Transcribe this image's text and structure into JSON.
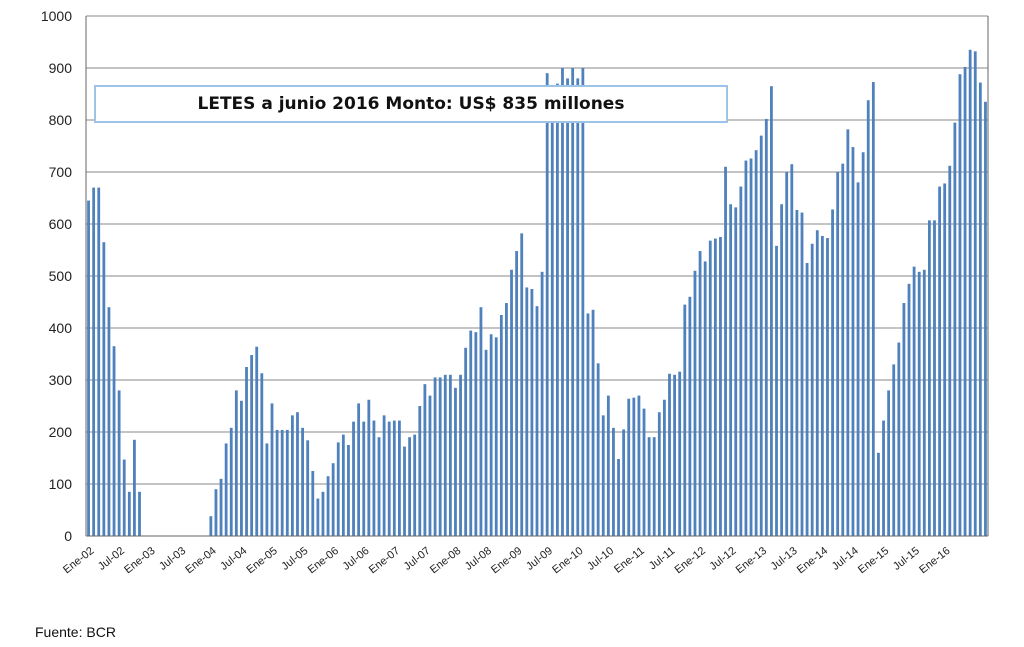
{
  "chart_data": {
    "type": "bar",
    "title": "",
    "annotation": "LETES a junio 2016 Monto: US$ 835 millones",
    "xlabel": "",
    "ylabel": "",
    "ylim": [
      0,
      1000
    ],
    "yticks": [
      0,
      100,
      200,
      300,
      400,
      500,
      600,
      700,
      800,
      900,
      1000
    ],
    "grid": true,
    "x_tick_labels": [
      "Ene-02",
      "Jul-02",
      "Ene-03",
      "Jul-03",
      "Ene-04",
      "Jul-04",
      "Ene-05",
      "Jul-05",
      "Ene-06",
      "Jul-06",
      "Ene-07",
      "Jul-07",
      "Ene-08",
      "Jul-08",
      "Ene-09",
      "Jul-09",
      "Ene-10",
      "Jul-10",
      "Ene-11",
      "Jul-11",
      "Ene-12",
      "Jul-12",
      "Ene-13",
      "Jul-13",
      "Ene-14",
      "Jul-14",
      "Ene-15",
      "Jul-15",
      "Ene-16"
    ],
    "period_start": "Ene-02",
    "period_end": "Jun-16",
    "series": [
      {
        "name": "LETES (US$ millones)",
        "color": "#4f81bd",
        "values": [
          645,
          670,
          670,
          565,
          440,
          365,
          280,
          147,
          85,
          185,
          85,
          0,
          0,
          0,
          0,
          0,
          0,
          0,
          0,
          0,
          0,
          0,
          0,
          0,
          38,
          90,
          110,
          178,
          208,
          280,
          260,
          325,
          348,
          364,
          313,
          178,
          255,
          204,
          204,
          204,
          232,
          238,
          208,
          184,
          125,
          72,
          85,
          115,
          140,
          180,
          195,
          175,
          220,
          255,
          220,
          262,
          222,
          190,
          232,
          220,
          222,
          222,
          172,
          190,
          195,
          250,
          292,
          270,
          305,
          305,
          310,
          310,
          285,
          310,
          362,
          395,
          392,
          440,
          358,
          388,
          382,
          425,
          448,
          512,
          548,
          582,
          478,
          475,
          442,
          508,
          890,
          860,
          870,
          900,
          880,
          900,
          880,
          900,
          428,
          435,
          332,
          232,
          270,
          208,
          148,
          205,
          264,
          266,
          270,
          245,
          190,
          190,
          238,
          262,
          312,
          310,
          316,
          445,
          460,
          510,
          548,
          528,
          568,
          572,
          575,
          710,
          638,
          632,
          672,
          722,
          726,
          742,
          770,
          802,
          865,
          558,
          638,
          700,
          715,
          627,
          622,
          525,
          562,
          588,
          577,
          573,
          628,
          700,
          716,
          782,
          748,
          680,
          738,
          838,
          873,
          160,
          222,
          280,
          330,
          372,
          448,
          485,
          518,
          508,
          512,
          607,
          607,
          672,
          678,
          712,
          795,
          888,
          902,
          935,
          932,
          872,
          835
        ]
      }
    ],
    "source": "Fuente: BCR"
  }
}
